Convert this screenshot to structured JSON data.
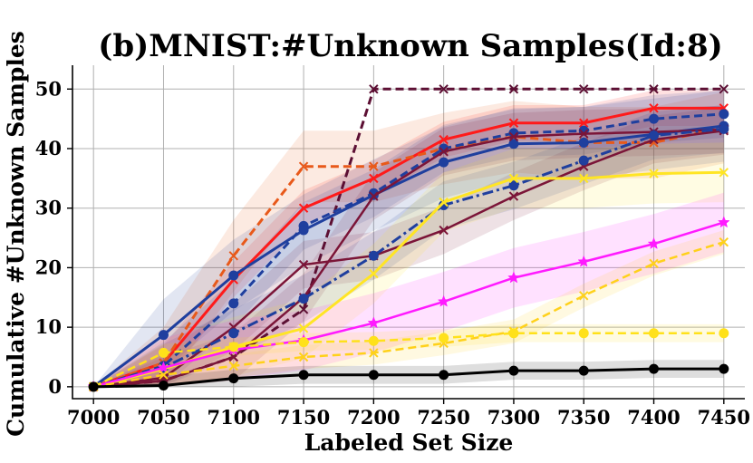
{
  "chart_data": {
    "type": "line",
    "title": "(b)MNIST:#Unknown Samples(Id:8)",
    "xlabel": "Labeled Set Size",
    "ylabel": "Cumulative #Unknown Samples",
    "x": [
      7000,
      7050,
      7100,
      7150,
      7200,
      7250,
      7300,
      7350,
      7400,
      7450
    ],
    "xticks": [
      "7000",
      "7050",
      "7100",
      "7150",
      "7200",
      "7250",
      "7300",
      "7350",
      "7400",
      "7450"
    ],
    "yticks": [
      "0",
      "10",
      "20",
      "30",
      "40",
      "50"
    ],
    "xlim": [
      6985,
      7465
    ],
    "ylim": [
      -2,
      54
    ],
    "grid": true,
    "series": [
      {
        "color": "#5c0f33",
        "dash": "9,5",
        "marker": "x",
        "width": 3,
        "band": 0,
        "values": [
          0,
          1,
          5,
          13,
          50,
          50,
          50,
          50,
          50,
          50
        ]
      },
      {
        "color": "#ff1a1a",
        "dash": "",
        "marker": "x",
        "width": 3,
        "band": 3,
        "values": [
          0,
          4,
          18,
          30,
          35,
          41.5,
          44.3,
          44.3,
          46.8,
          46.8
        ]
      },
      {
        "color": "#e8591a",
        "dash": "9,5",
        "marker": "x",
        "width": 3,
        "band": 6,
        "values": [
          0,
          4,
          22,
          37,
          37,
          40,
          42,
          41,
          41,
          43.5
        ]
      },
      {
        "color": "#1f3f9e",
        "dash": "9,5",
        "marker": "o",
        "width": 3,
        "band": 4,
        "values": [
          0,
          3.5,
          14,
          27,
          32.5,
          40,
          42.6,
          43,
          45,
          45.8
        ]
      },
      {
        "color": "#1f3f9e",
        "dash": "",
        "marker": "o",
        "width": 3,
        "band": 6,
        "values": [
          0,
          8.7,
          18.7,
          26.3,
          32.2,
          37.7,
          40.8,
          41,
          42.4,
          43.8
        ]
      },
      {
        "color": "#7b1538",
        "dash": "",
        "marker": "x",
        "width": 2.5,
        "band": 4,
        "values": [
          0,
          1.5,
          10,
          20.5,
          22,
          26.3,
          32,
          37,
          41.5,
          43
        ]
      },
      {
        "color": "#7b1538",
        "dash": "",
        "marker": "x",
        "width": 2.5,
        "band": 4,
        "values": [
          0,
          1,
          5,
          15,
          32,
          39.5,
          42,
          42.5,
          42.8,
          43.2
        ]
      },
      {
        "color": "#1f3f9e",
        "dash": "12,4,3,4",
        "marker": "o",
        "width": 3,
        "band": 4,
        "values": [
          0,
          3.2,
          9,
          14.8,
          22,
          30.5,
          33.8,
          38,
          42.2,
          43.3
        ]
      },
      {
        "color": "#ffe524",
        "dash": "",
        "marker": "x",
        "width": 3,
        "band": 5,
        "values": [
          0,
          3,
          6.7,
          9.8,
          19,
          31,
          35,
          35,
          35.8,
          36
        ]
      },
      {
        "color": "#ff1aff",
        "dash": "",
        "marker": "*",
        "width": 2.5,
        "band": 5,
        "values": [
          0,
          3.2,
          6.2,
          7.8,
          10.7,
          14.3,
          18.3,
          21,
          24,
          27.6
        ]
      },
      {
        "color": "#ffd11a",
        "dash": "9,5",
        "marker": "x",
        "width": 2.5,
        "band": 2,
        "values": [
          0,
          2,
          3.5,
          5,
          5.7,
          7.3,
          9.3,
          15.3,
          20.7,
          24.3
        ]
      },
      {
        "color": "#ffe11a",
        "dash": "9,5",
        "marker": "o",
        "width": 2.5,
        "band": 1.5,
        "values": [
          0,
          5.7,
          6.7,
          7.5,
          7.7,
          8.2,
          9,
          9,
          9,
          9
        ]
      },
      {
        "color": "#000000",
        "dash": "",
        "marker": "o",
        "width": 3,
        "band": 1.5,
        "values": [
          0,
          0.2,
          1.4,
          2,
          2,
          2,
          2.7,
          2.7,
          3,
          3
        ]
      }
    ]
  }
}
